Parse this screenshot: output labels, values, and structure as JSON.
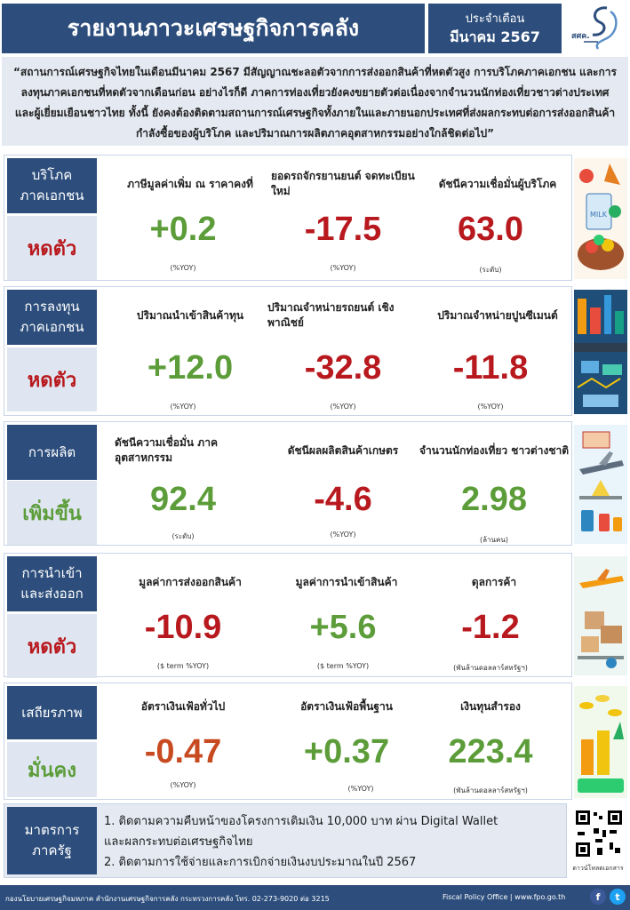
{
  "header": {
    "title": "รายงานภาวะเศรษฐกิจการคลัง",
    "period_label": "ประจำเดือน",
    "period_month": "มีนาคม 2567",
    "logo_text": "สศค."
  },
  "summary": "“สถานการณ์เศรษฐกิจไทยในเดือนมีนาคม 2567 มีสัญญาณชะลอตัวจากการส่งออกสินค้าที่หดตัวสูง การบริโภคภาคเอกชน และการลงทุนภาคเอกชนที่หดตัวจากเดือนก่อน อย่างไรก็ดี ภาคการท่องเที่ยวยังคงขยายตัวต่อเนื่องจากจำนวนนักท่องเที่ยวชาวต่างประเทศและผู้เยี่ยมเยือนชาวไทย ทั้งนี้ ยังคงต้องติดตามสถานการณ์เศรษฐกิจทั้งภายในและภายนอกประเทศที่ส่งผลกระทบต่อการส่งออกสินค้า กำลังซื้อของผู้บริโภค และปริมาณการผลิตภาคอุตสาหกรรมอย่างใกล้ชิดต่อไป”",
  "sections": [
    {
      "category_line1": "บริโภค",
      "category_line2": "ภาคเอกชน",
      "status": "หดตัว",
      "metrics": [
        {
          "label": "ภาษีมูลค่าเพิ่ม ณ ราคาคงที่",
          "value": "+0.2",
          "unit": "(%YOY)"
        },
        {
          "label": "ยอดรถจักรยานยนต์ จดทะเบียนใหม่",
          "value": "-17.5",
          "unit": "(%YOY)"
        },
        {
          "label": "ดัชนีความเชื่อมั่นผู้บริโภค",
          "value": "63.0",
          "unit": "(ระดับ)"
        }
      ]
    },
    {
      "category_line1": "การลงทุน",
      "category_line2": "ภาคเอกชน",
      "status": "หดตัว",
      "metrics": [
        {
          "label": "ปริมาณนำเข้าสินค้าทุน",
          "value": "+12.0",
          "unit": "(%YOY)"
        },
        {
          "label": "ปริมาณจำหน่ายรถยนต์ เชิงพาณิชย์",
          "value": "-32.8",
          "unit": "(%YOY)"
        },
        {
          "label": "ปริมาณจำหน่ายปูนซีเมนต์",
          "value": "-11.8",
          "unit": "(%YOY)"
        }
      ]
    },
    {
      "category_line1": "การผลิต",
      "category_line2": "",
      "status": "เพิ่มขึ้น",
      "metrics": [
        {
          "label": "ดัชนีความเชื่อมั่น ภาคอุตสาหกรรม",
          "value": "92.4",
          "unit": "(ระดับ)"
        },
        {
          "label": "ดัชนีผลผลิตสินค้าเกษตร",
          "value": "-4.6",
          "unit": "(%YOY)"
        },
        {
          "label": "จำนวนนักท่องเที่ยว ชาวต่างชาติ",
          "value": "2.98",
          "unit": "(ล้านคน)"
        }
      ]
    },
    {
      "category_line1": "การนำเข้า",
      "category_line2": "และส่งออก",
      "status": "หดตัว",
      "metrics": [
        {
          "label": "มูลค่าการส่งออกสินค้า",
          "value": "-10.9",
          "unit": "($ term %YOY)"
        },
        {
          "label": "มูลค่าการนำเข้าสินค้า",
          "value": "+5.6",
          "unit": "($ term %YOY)"
        },
        {
          "label": "ดุลการค้า",
          "value": "-1.2",
          "unit": "(พันล้านดอลลาร์สหรัฐฯ)"
        }
      ]
    },
    {
      "category_line1": "เสถียรภาพ",
      "category_line2": "",
      "status": "มั่นคง",
      "metrics": [
        {
          "label": "อัตราเงินเฟ้อทั่วไป",
          "value": "-0.47",
          "unit": "(%YOY)"
        },
        {
          "label": "อัตราเงินเฟ้อพื้นฐาน",
          "value": "+0.37",
          "unit": "(%YOY)"
        },
        {
          "label": "เงินทุนสำรอง",
          "value": "223.4",
          "unit": "(พันล้านดอลลาร์สหรัฐฯ)"
        }
      ]
    }
  ],
  "measures": {
    "category_line1": "มาตรการ",
    "category_line2": "ภาครัฐ",
    "item1": "1. ติดตามความคืบหน้าของโครงการเติมเงิน 10,000 บาท ผ่าน Digital Wallet",
    "item1b": "และผลกระทบต่อเศรษฐกิจไทย",
    "item2": "2. ติดตามการใช้จ่ายและการเบิกจ่ายเงินงบประมาณในปี 2567"
  },
  "qr_label": "ดาวน์โหลดเอกสาร",
  "footer": {
    "left": "กองนโยบายเศรษฐกิจมหภาค สำนักงานเศรษฐกิจการคลัง กระทรวงการคลัง โทร. 02-273-9020 ต่อ 3215",
    "right": "Fiscal Policy Office | www.fpo.go.th"
  },
  "colors": {
    "navy": "#2d4e7c",
    "positive_green": "#5c9d3a",
    "negative_red": "#b8191e",
    "light_panel": "#e4e9f2"
  },
  "icons": [
    "food-basket-icon",
    "factory-icon",
    "airplane-tourism-icon",
    "cargo-shipping-icon",
    "coins-growth-icon",
    "facebook-icon",
    "twitter-icon"
  ]
}
